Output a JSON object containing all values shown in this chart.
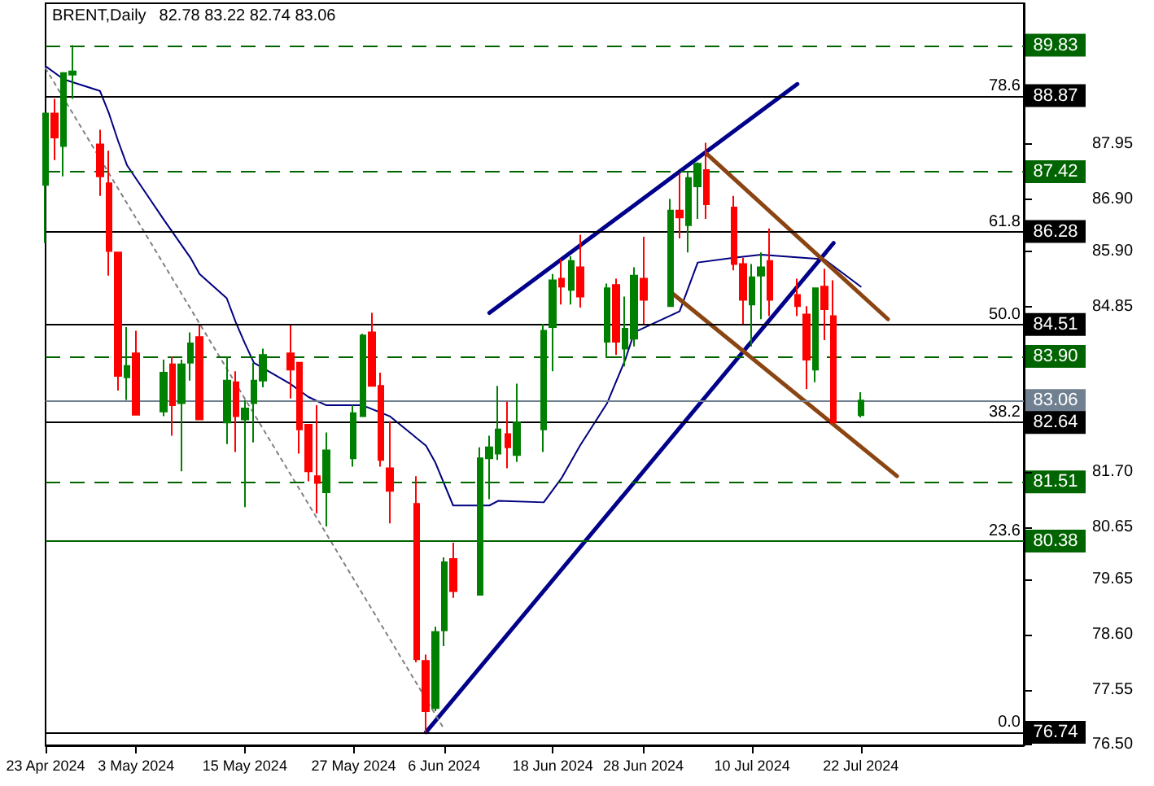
{
  "chart_data": {
    "type": "candlestick",
    "title": "BRENT,Daily",
    "subtitle": "82.78 83.22 82.74 83.06",
    "x": [
      "2024-04-23",
      "2024-04-24",
      "2024-04-25",
      "2024-04-26",
      "2024-04-29",
      "2024-04-30",
      "2024-05-01",
      "2024-05-02",
      "2024-05-03",
      "2024-05-06",
      "2024-05-07",
      "2024-05-08",
      "2024-05-09",
      "2024-05-10",
      "2024-05-13",
      "2024-05-14",
      "2024-05-15",
      "2024-05-16",
      "2024-05-17",
      "2024-05-20",
      "2024-05-21",
      "2024-05-22",
      "2024-05-23",
      "2024-05-24",
      "2024-05-27",
      "2024-05-28",
      "2024-05-29",
      "2024-05-30",
      "2024-05-31",
      "2024-06-03",
      "2024-06-04",
      "2024-06-05",
      "2024-06-06",
      "2024-06-07",
      "2024-06-10",
      "2024-06-11",
      "2024-06-12",
      "2024-06-13",
      "2024-06-14",
      "2024-06-17",
      "2024-06-18",
      "2024-06-19",
      "2024-06-20",
      "2024-06-21",
      "2024-06-24",
      "2024-06-25",
      "2024-06-26",
      "2024-06-27",
      "2024-06-28",
      "2024-07-01",
      "2024-07-02",
      "2024-07-03",
      "2024-07-04",
      "2024-07-05",
      "2024-07-08",
      "2024-07-09",
      "2024-07-10",
      "2024-07-11",
      "2024-07-12",
      "2024-07-15",
      "2024-07-16",
      "2024-07-17",
      "2024-07-18",
      "2024-07-19",
      "2024-07-22"
    ],
    "ohlc": [
      [
        87.17,
        88.53,
        86.06,
        88.53
      ],
      [
        88.53,
        88.81,
        87.64,
        88.07
      ],
      [
        87.91,
        89.3,
        87.33,
        89.3
      ],
      [
        89.27,
        89.83,
        88.81,
        89.33
      ],
      [
        87.94,
        88.22,
        86.96,
        87.33
      ],
      [
        87.2,
        87.82,
        85.44,
        85.91
      ],
      [
        85.88,
        85.88,
        83.25,
        83.53
      ],
      [
        83.5,
        84.46,
        83.07,
        83.72
      ],
      [
        83.96,
        84.39,
        82.79,
        82.79
      ],
      [
        82.85,
        83.84,
        82.76,
        83.59
      ],
      [
        83.75,
        83.9,
        82.39,
        82.97
      ],
      [
        83.01,
        83.84,
        81.71,
        83.75
      ],
      [
        83.78,
        84.36,
        83.44,
        84.15
      ],
      [
        84.27,
        84.49,
        82.7,
        82.7
      ],
      [
        82.64,
        83.9,
        82.23,
        83.44
      ],
      [
        83.41,
        83.62,
        82.08,
        82.76
      ],
      [
        82.7,
        83.07,
        81.03,
        82.91
      ],
      [
        83.01,
        83.78,
        82.26,
        83.44
      ],
      [
        83.44,
        84.05,
        83.31,
        83.93
      ],
      [
        83.96,
        84.49,
        83.1,
        83.65
      ],
      [
        83.78,
        83.78,
        82.05,
        82.51
      ],
      [
        82.6,
        82.6,
        81.52,
        81.71
      ],
      [
        81.62,
        82.97,
        80.91,
        81.49
      ],
      [
        81.31,
        82.45,
        80.66,
        82.11
      ],
      [
        81.96,
        82.97,
        81.8,
        82.82
      ],
      [
        82.76,
        84.33,
        82.76,
        84.3
      ],
      [
        84.36,
        84.73,
        83.34,
        83.34
      ],
      [
        83.34,
        83.59,
        81.8,
        81.93
      ],
      [
        81.77,
        82.67,
        80.72,
        81.34
      ],
      [
        81.09,
        81.62,
        78.07,
        78.13
      ],
      [
        78.1,
        78.22,
        76.74,
        77.14
      ],
      [
        77.2,
        78.75,
        77.14,
        78.65
      ],
      [
        78.68,
        80.07,
        78.38,
        79.98
      ],
      [
        80.04,
        80.35,
        79.3,
        79.43
      ],
      [
        79.36,
        82.17,
        79.36,
        81.96
      ],
      [
        81.96,
        82.39,
        81.18,
        82.17
      ],
      [
        82.05,
        83.34,
        81.93,
        82.51
      ],
      [
        82.42,
        83.04,
        81.77,
        82.17
      ],
      [
        82.02,
        83.38,
        81.89,
        82.64
      ],
      [
        82.51,
        84.52,
        82.08,
        84.39
      ],
      [
        84.46,
        85.47,
        83.62,
        85.35
      ],
      [
        85.38,
        85.75,
        84.89,
        85.23
      ],
      [
        85.17,
        85.81,
        84.89,
        85.72
      ],
      [
        85.6,
        86.22,
        84.83,
        85.04
      ],
      [
        84.18,
        85.29,
        83.87,
        85.2
      ],
      [
        85.26,
        85.38,
        83.93,
        84.18
      ],
      [
        84.05,
        85.04,
        83.71,
        84.43
      ],
      [
        84.24,
        85.6,
        84.09,
        85.44
      ],
      [
        85.38,
        86.18,
        84.52,
        84.98
      ],
      [
        84.86,
        86.9,
        84.86,
        86.68
      ],
      [
        86.68,
        87.39,
        86.15,
        86.55
      ],
      [
        86.4,
        87.42,
        85.88,
        87.3
      ],
      [
        87.14,
        87.6,
        86.52,
        87.57
      ],
      [
        87.45,
        87.97,
        86.52,
        86.8
      ],
      [
        86.74,
        86.96,
        85.54,
        85.66
      ],
      [
        85.66,
        85.78,
        84.52,
        84.98
      ],
      [
        84.89,
        85.66,
        84.09,
        85.41
      ],
      [
        85.44,
        85.88,
        84.61,
        85.6
      ],
      [
        85.72,
        86.34,
        84.67,
        84.98
      ],
      [
        85.07,
        85.38,
        84.67,
        84.86
      ],
      [
        84.7,
        84.86,
        83.28,
        83.84
      ],
      [
        83.65,
        85.2,
        83.41,
        85.2
      ],
      [
        85.23,
        85.57,
        84.21,
        84.8
      ],
      [
        84.67,
        85.35,
        82.64,
        82.64
      ],
      [
        82.78,
        83.22,
        82.74,
        83.06
      ]
    ],
    "colors": [
      "#008000",
      "#ff0000",
      "#008000",
      "#008000",
      "#ff0000",
      "#ff0000",
      "#ff0000",
      "#008000",
      "#ff0000",
      "#008000",
      "#ff0000",
      "#008000",
      "#008000",
      "#ff0000",
      "#008000",
      "#ff0000",
      "#008000",
      "#008000",
      "#008000",
      "#ff0000",
      "#ff0000",
      "#ff0000",
      "#ff0000",
      "#008000",
      "#008000",
      "#008000",
      "#ff0000",
      "#ff0000",
      "#ff0000",
      "#ff0000",
      "#ff0000",
      "#008000",
      "#008000",
      "#ff0000",
      "#008000",
      "#008000",
      "#008000",
      "#ff0000",
      "#008000",
      "#008000",
      "#008000",
      "#ff0000",
      "#008000",
      "#ff0000",
      "#008000",
      "#ff0000",
      "#008000",
      "#008000",
      "#ff0000",
      "#008000",
      "#ff0000",
      "#008000",
      "#008000",
      "#ff0000",
      "#ff0000",
      "#ff0000",
      "#008000",
      "#008000",
      "#ff0000",
      "#ff0000",
      "#ff0000",
      "#008000",
      "#ff0000",
      "#ff0000",
      "#008000"
    ],
    "series": [
      {
        "type": "line",
        "color": "#000080",
        "line_style": "solid",
        "x": [
          "2024-04-23",
          "2024-04-25",
          "2024-04-29",
          "2024-04-30",
          "2024-05-01",
          "2024-05-02",
          "2024-05-06",
          "2024-05-09",
          "2024-05-10",
          "2024-05-13",
          "2024-05-14",
          "2024-05-15",
          "2024-05-16",
          "2024-05-20",
          "2024-05-22",
          "2024-05-24",
          "2024-05-28",
          "2024-05-31",
          "2024-06-04",
          "2024-06-05",
          "2024-06-07",
          "2024-06-11",
          "2024-06-12",
          "2024-06-17",
          "2024-06-19",
          "2024-06-21",
          "2024-06-24",
          "2024-06-26",
          "2024-06-27",
          "2024-07-02",
          "2024-07-04",
          "2024-07-08",
          "2024-07-11",
          "2024-07-18",
          "2024-07-22"
        ],
        "values": [
          89.43,
          89.18,
          88.96,
          88.53,
          88.01,
          87.54,
          86.52,
          85.78,
          85.47,
          85.01,
          84.55,
          84.15,
          83.78,
          83.38,
          83.13,
          82.97,
          82.97,
          82.76,
          82.2,
          81.89,
          81.06,
          81.06,
          81.15,
          81.12,
          81.59,
          82.2,
          83.01,
          83.84,
          84.36,
          84.76,
          85.69,
          85.78,
          85.84,
          85.75,
          85.23
        ]
      },
      {
        "type": "line",
        "color": "#00008b",
        "line_style": "solid",
        "x": [
          "2024-06-11",
          "2024-07-15"
        ],
        "values": [
          84.73,
          89.09
        ]
      },
      {
        "type": "line",
        "color": "#00008b",
        "line_style": "solid",
        "x": [
          "2024-06-04",
          "2024-07-19"
        ],
        "values": [
          76.74,
          86.06
        ]
      },
      {
        "type": "line",
        "color": "#8b4513",
        "line_style": "solid",
        "x": [
          "2024-07-05",
          "2024-07-25"
        ],
        "values": [
          87.76,
          84.61
        ]
      },
      {
        "type": "line",
        "color": "#8b4513",
        "line_style": "solid",
        "x": [
          "2024-07-01",
          "2024-07-26"
        ],
        "values": [
          85.13,
          81.62
        ]
      },
      {
        "type": "line",
        "color": "#808080",
        "line_style": "dotted",
        "x": [
          "2024-04-23",
          "2024-06-06"
        ],
        "values": [
          89.39,
          76.8
        ]
      }
    ],
    "xlim": [
      "2024-04-23",
      "2024-08-09"
    ],
    "xticks": [
      {
        "value": "2024-04-23",
        "label": "23 Apr 2024"
      },
      {
        "value": "2024-05-03",
        "label": "3 May 2024"
      },
      {
        "value": "2024-05-15",
        "label": "15 May 2024"
      },
      {
        "value": "2024-05-27",
        "label": "27 May 2024"
      },
      {
        "value": "2024-06-06",
        "label": "6 Jun 2024"
      },
      {
        "value": "2024-06-18",
        "label": "18 Jun 2024"
      },
      {
        "value": "2024-06-28",
        "label": "28 Jun 2024"
      },
      {
        "value": "2024-07-10",
        "label": "10 Jul 2024"
      },
      {
        "value": "2024-07-22",
        "label": "22 Jul 2024"
      }
    ],
    "ylim": [
      76.49,
      90.63
    ],
    "yticks": [
      {
        "value": 76.5,
        "label": "76.50"
      },
      {
        "value": 77.55,
        "label": "77.55"
      },
      {
        "value": 78.6,
        "label": "78.60"
      },
      {
        "value": 79.65,
        "label": "79.65"
      },
      {
        "value": 80.65,
        "label": "80.65"
      },
      {
        "value": 81.7,
        "label": "81.70"
      },
      {
        "value": 84.85,
        "label": "84.85"
      },
      {
        "value": 85.9,
        "label": "85.90"
      },
      {
        "value": 86.9,
        "label": "86.90"
      },
      {
        "value": 87.95,
        "label": "87.95"
      }
    ],
    "grid": false,
    "ref_lines": [
      {
        "axis": "y",
        "value": 89.83,
        "label": "89.83",
        "color": "#006400",
        "line_style": "dashed"
      },
      {
        "axis": "y",
        "value": 88.87,
        "label": "88.87",
        "color": "#000000",
        "line_style": "solid"
      },
      {
        "axis": "y",
        "value": 87.42,
        "label": "87.42",
        "color": "#006400",
        "line_style": "dashed"
      },
      {
        "axis": "y",
        "value": 86.28,
        "label": "86.28",
        "color": "#000000",
        "line_style": "solid"
      },
      {
        "axis": "y",
        "value": 84.51,
        "label": "84.51",
        "color": "#000000",
        "line_style": "solid"
      },
      {
        "axis": "y",
        "value": 83.9,
        "label": "83.90",
        "color": "#006400",
        "line_style": "dashed"
      },
      {
        "axis": "y",
        "value": 83.06,
        "label": "83.06",
        "color": "#708090",
        "line_style": "solid"
      },
      {
        "axis": "y",
        "value": 82.64,
        "label": "82.64",
        "color": "#000000",
        "line_style": "solid"
      },
      {
        "axis": "y",
        "value": 81.51,
        "label": "81.51",
        "color": "#006400",
        "line_style": "dashed"
      },
      {
        "axis": "y",
        "value": 80.38,
        "label": "80.38",
        "color": "#006400",
        "line_style": "solid"
      },
      {
        "axis": "y",
        "value": 76.74,
        "label": "76.74",
        "color": "#000000",
        "line_style": "solid"
      }
    ],
    "annotations": [
      {
        "text": "78.6",
        "y": 88.87
      },
      {
        "text": "61.8",
        "y": 86.28
      },
      {
        "text": "50.0",
        "y": 84.51
      },
      {
        "text": "38.2",
        "y": 82.64
      },
      {
        "text": "23.6",
        "y": 80.38
      },
      {
        "text": "0.0",
        "y": 76.74
      }
    ]
  }
}
